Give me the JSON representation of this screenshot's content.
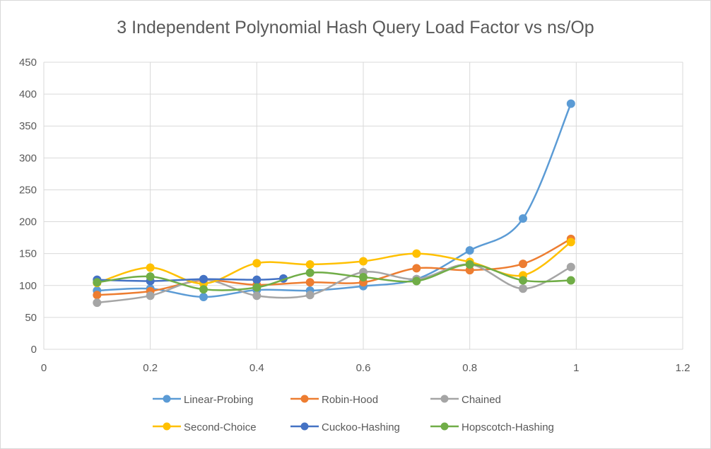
{
  "chart_data": {
    "type": "scatter",
    "title": "3 Independent Polynomial Hash Query Load Factor vs ns/Op",
    "xlabel": "",
    "ylabel": "",
    "xlim": [
      0,
      1.2
    ],
    "ylim": [
      0,
      450
    ],
    "xticks": [
      "0",
      "0.2",
      "0.4",
      "0.6",
      "0.8",
      "1",
      "1.2"
    ],
    "yticks": [
      "0",
      "50",
      "100",
      "150",
      "200",
      "250",
      "300",
      "350",
      "400",
      "450"
    ],
    "grid": true,
    "legend_position": "bottom",
    "smooth_lines": true,
    "series": [
      {
        "name": "Linear-Probing",
        "color": "#5b9bd5",
        "points": [
          [
            0.1,
            92
          ],
          [
            0.2,
            95
          ],
          [
            0.3,
            82
          ],
          [
            0.4,
            93
          ],
          [
            0.5,
            92
          ],
          [
            0.6,
            99
          ],
          [
            0.7,
            110
          ],
          [
            0.8,
            155
          ],
          [
            0.9,
            205
          ],
          [
            0.99,
            385
          ]
        ]
      },
      {
        "name": "Robin-Hood",
        "color": "#ed7d31",
        "points": [
          [
            0.1,
            85
          ],
          [
            0.2,
            91
          ],
          [
            0.3,
            108
          ],
          [
            0.4,
            101
          ],
          [
            0.5,
            105
          ],
          [
            0.6,
            105
          ],
          [
            0.7,
            127
          ],
          [
            0.8,
            124
          ],
          [
            0.9,
            134
          ],
          [
            0.99,
            173
          ]
        ]
      },
      {
        "name": "Chained",
        "color": "#a5a5a5",
        "points": [
          [
            0.1,
            73
          ],
          [
            0.2,
            84
          ],
          [
            0.3,
            109
          ],
          [
            0.4,
            84
          ],
          [
            0.5,
            85
          ],
          [
            0.6,
            121
          ],
          [
            0.7,
            110
          ],
          [
            0.8,
            133
          ],
          [
            0.9,
            95
          ],
          [
            0.99,
            129
          ]
        ]
      },
      {
        "name": "Second-Choice",
        "color": "#ffc000",
        "points": [
          [
            0.1,
            104
          ],
          [
            0.2,
            128
          ],
          [
            0.3,
            103
          ],
          [
            0.4,
            135
          ],
          [
            0.5,
            133
          ],
          [
            0.6,
            138
          ],
          [
            0.7,
            150
          ],
          [
            0.8,
            137
          ],
          [
            0.9,
            116
          ],
          [
            0.99,
            168
          ]
        ]
      },
      {
        "name": "Cuckoo-Hashing",
        "color": "#4472c4",
        "points": [
          [
            0.1,
            109
          ],
          [
            0.2,
            107
          ],
          [
            0.3,
            110
          ],
          [
            0.4,
            109
          ],
          [
            0.45,
            111
          ]
        ]
      },
      {
        "name": "Hopscotch-Hashing",
        "color": "#70ad47",
        "points": [
          [
            0.1,
            105
          ],
          [
            0.2,
            114
          ],
          [
            0.3,
            94
          ],
          [
            0.4,
            97
          ],
          [
            0.5,
            120
          ],
          [
            0.6,
            113
          ],
          [
            0.7,
            107
          ],
          [
            0.8,
            133
          ],
          [
            0.9,
            108
          ],
          [
            0.99,
            108
          ]
        ]
      }
    ]
  }
}
